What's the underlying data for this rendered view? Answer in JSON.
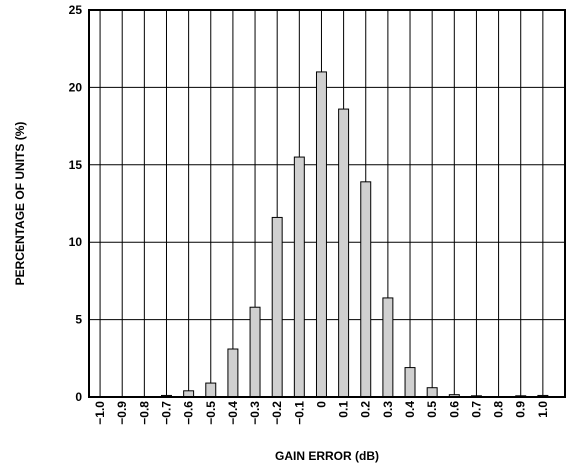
{
  "chart_data": {
    "type": "bar",
    "title": "",
    "xlabel": "GAIN ERROR (dB)",
    "ylabel": "PERCENTAGE OF UNITS (%)",
    "ylim": [
      0,
      25
    ],
    "yticks": [
      "0",
      "5",
      "10",
      "15",
      "20",
      "25"
    ],
    "categories": [
      "−1.0",
      "−0.9",
      "−0.8",
      "−0.7",
      "−0.6",
      "−0.5",
      "−0.4",
      "−0.3",
      "−0.2",
      "−0.1",
      "0",
      "0.1",
      "0.2",
      "0.3",
      "0.4",
      "0.5",
      "0.6",
      "0.7",
      "0.8",
      "0.9",
      "1.0"
    ],
    "values": [
      0,
      0,
      0,
      0.1,
      0.4,
      0.9,
      3.1,
      5.8,
      11.6,
      15.5,
      21.0,
      18.6,
      13.9,
      6.4,
      1.9,
      0.6,
      0.15,
      0.05,
      0,
      0.05,
      0.1
    ],
    "grid": true,
    "bar_color": "#d0d0d0",
    "edge_color": "#000000"
  }
}
